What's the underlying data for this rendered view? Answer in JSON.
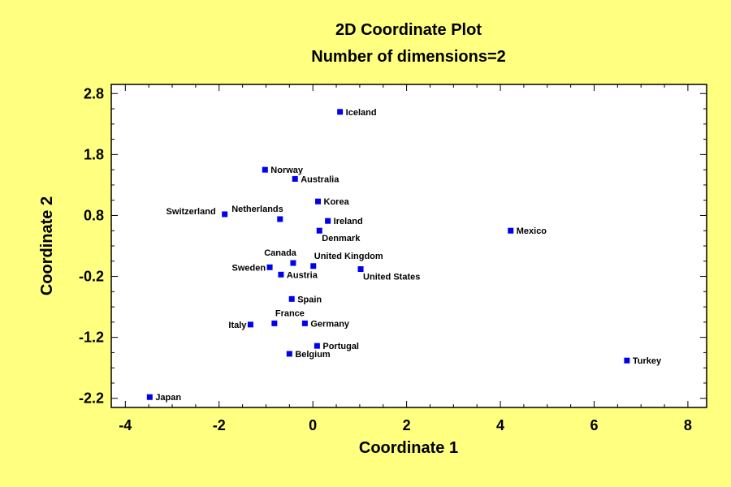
{
  "chart_data": {
    "type": "scatter",
    "title": "2D Coordinate Plot",
    "subtitle": "Number of dimensions=2",
    "xlabel": "Coordinate 1",
    "ylabel": "Coordinate 2",
    "xlim": [
      -4.3,
      8.4
    ],
    "ylim": [
      -2.35,
      2.95
    ],
    "xticks": [
      -4,
      -2,
      0,
      2,
      4,
      6,
      8
    ],
    "yticks": [
      2.8,
      1.8,
      0.8,
      -0.2,
      -1.2,
      -2.2
    ],
    "ytick_labels": [
      "2.8",
      "1.8",
      "0.8",
      "-0.2",
      "-1.2",
      "-2.2"
    ],
    "grid": false,
    "colors": {
      "background": "#FFFF80",
      "plot_area": "#FFFFFF",
      "marker": "#0000EE"
    },
    "points": [
      {
        "label": "Iceland",
        "x": 0.58,
        "y": 2.5,
        "label_pos": "right"
      },
      {
        "label": "Norway",
        "x": -1.02,
        "y": 1.55,
        "label_pos": "right"
      },
      {
        "label": "Australia",
        "x": -0.38,
        "y": 1.4,
        "label_pos": "right"
      },
      {
        "label": "Korea",
        "x": 0.11,
        "y": 1.03,
        "label_pos": "right"
      },
      {
        "label": "Switzerland",
        "x": -1.88,
        "y": 0.82,
        "label_pos": "left-above"
      },
      {
        "label": "Netherlands",
        "x": -0.7,
        "y": 0.74,
        "label_pos": "above-left"
      },
      {
        "label": "Ireland",
        "x": 0.32,
        "y": 0.71,
        "label_pos": "right"
      },
      {
        "label": "Denmark",
        "x": 0.14,
        "y": 0.55,
        "label_pos": "below-right"
      },
      {
        "label": "Mexico",
        "x": 4.22,
        "y": 0.55,
        "label_pos": "right"
      },
      {
        "label": "Canada",
        "x": -0.42,
        "y": 0.02,
        "label_pos": "above-left"
      },
      {
        "label": "United Kingdom",
        "x": 0.01,
        "y": -0.03,
        "label_pos": "above-right"
      },
      {
        "label": "Sweden",
        "x": -0.92,
        "y": -0.05,
        "label_pos": "left"
      },
      {
        "label": "United States",
        "x": 1.02,
        "y": -0.08,
        "label_pos": "below-right"
      },
      {
        "label": "Austria",
        "x": -0.68,
        "y": -0.17,
        "label_pos": "right"
      },
      {
        "label": "Spain",
        "x": -0.45,
        "y": -0.57,
        "label_pos": "right"
      },
      {
        "label": "France",
        "x": -0.82,
        "y": -0.97,
        "label_pos": "above-right"
      },
      {
        "label": "Italy",
        "x": -1.33,
        "y": -0.99,
        "label_pos": "left"
      },
      {
        "label": "Germany",
        "x": -0.17,
        "y": -0.97,
        "label_pos": "right"
      },
      {
        "label": "Portugal",
        "x": 0.09,
        "y": -1.34,
        "label_pos": "right"
      },
      {
        "label": "Belgium",
        "x": -0.5,
        "y": -1.47,
        "label_pos": "right"
      },
      {
        "label": "Turkey",
        "x": 6.7,
        "y": -1.58,
        "label_pos": "right"
      },
      {
        "label": "Japan",
        "x": -3.48,
        "y": -2.18,
        "label_pos": "right"
      }
    ]
  }
}
